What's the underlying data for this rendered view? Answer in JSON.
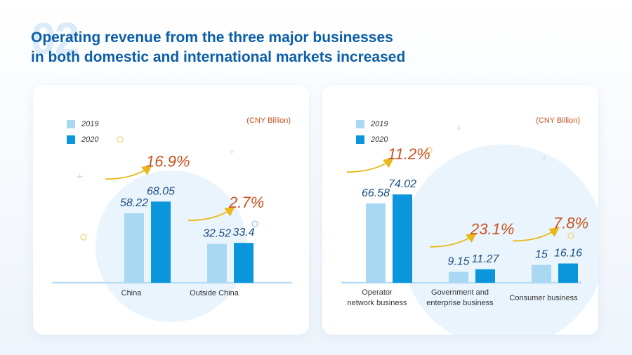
{
  "page": {
    "number": "02",
    "title_line1": "Operating revenue from the three major businesses",
    "title_line2": "in both domestic and international markets increased"
  },
  "colors": {
    "y2019": "#a9d8f3",
    "y2020": "#0a95dd",
    "growth": "#c8521f",
    "arrow": "#e9b81a",
    "baseline": "#b8dcf2"
  },
  "chart_data": [
    {
      "type": "bar",
      "unit": "(CNY Billion)",
      "categories": [
        "China",
        "Outside China"
      ],
      "series": [
        {
          "name": "2019",
          "values": [
            58.22,
            32.52
          ]
        },
        {
          "name": "2020",
          "values": [
            68.05,
            33.4
          ]
        }
      ],
      "growth": [
        "16.9%",
        "2.7%"
      ],
      "legend": "top-left",
      "grid": false
    },
    {
      "type": "bar",
      "unit": "(CNY Billion)",
      "categories": [
        "Operator network business",
        "Government and enterprise business",
        "Consumer business"
      ],
      "series": [
        {
          "name": "2019",
          "values": [
            66.58,
            9.15,
            15
          ]
        },
        {
          "name": "2020",
          "values": [
            74.02,
            11.27,
            16.16
          ]
        }
      ],
      "growth": [
        "11.2%",
        "23.1%",
        "7.8%"
      ],
      "legend": "top-left",
      "grid": false
    }
  ],
  "labels": {
    "left_cat1": "China",
    "left_cat2": "Outside China",
    "right_cat1_line1": "Operator",
    "right_cat1_line2": "network business",
    "right_cat2_line1": "Government and",
    "right_cat2_line2": "enterprise business",
    "right_cat3": "Consumer business"
  }
}
